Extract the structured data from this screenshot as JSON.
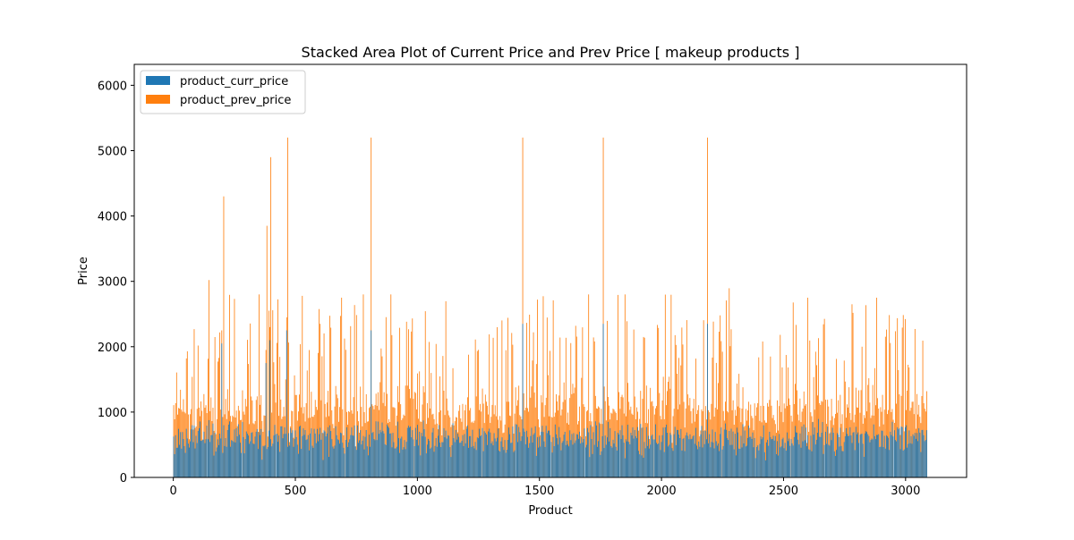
{
  "chart_data": {
    "type": "bar",
    "stacked": true,
    "title": "Stacked Area Plot of Current Price and Prev Price [ makeup products ]",
    "xlabel": "Product",
    "ylabel": "Price",
    "xlim": [
      -160,
      3250
    ],
    "ylim": [
      0,
      6320
    ],
    "x_ticks": [
      0,
      500,
      1000,
      1500,
      2000,
      2500,
      3000
    ],
    "y_ticks": [
      0,
      1000,
      2000,
      3000,
      4000,
      5000,
      6000
    ],
    "legend_position": "top-left",
    "grid": false,
    "n_products": 3090,
    "series": [
      {
        "name": "product_curr_price",
        "color": "#1f77b4",
        "typical_range": [
          150,
          900
        ],
        "peaks": [
          [
            200,
            2050
          ],
          [
            380,
            1750
          ],
          [
            395,
            2100
          ],
          [
            465,
            2250
          ],
          [
            810,
            2250
          ],
          [
            1430,
            2350
          ],
          [
            1760,
            2350
          ],
          [
            2190,
            2350
          ]
        ]
      },
      {
        "name": "product_prev_price",
        "color": "#ff7f0e",
        "total_peaks": [
          [
            205,
            4300
          ],
          [
            385,
            3850
          ],
          [
            400,
            4900
          ],
          [
            470,
            5200
          ],
          [
            810,
            5200
          ],
          [
            1430,
            5200
          ],
          [
            1760,
            5200
          ],
          [
            2190,
            5200
          ],
          [
            350,
            2800
          ],
          [
            890,
            2800
          ],
          [
            1700,
            2800
          ],
          [
            1850,
            2800
          ],
          [
            2880,
            2750
          ],
          [
            2600,
            2750
          ],
          [
            690,
            2750
          ],
          [
            780,
            2800
          ]
        ]
      }
    ]
  }
}
